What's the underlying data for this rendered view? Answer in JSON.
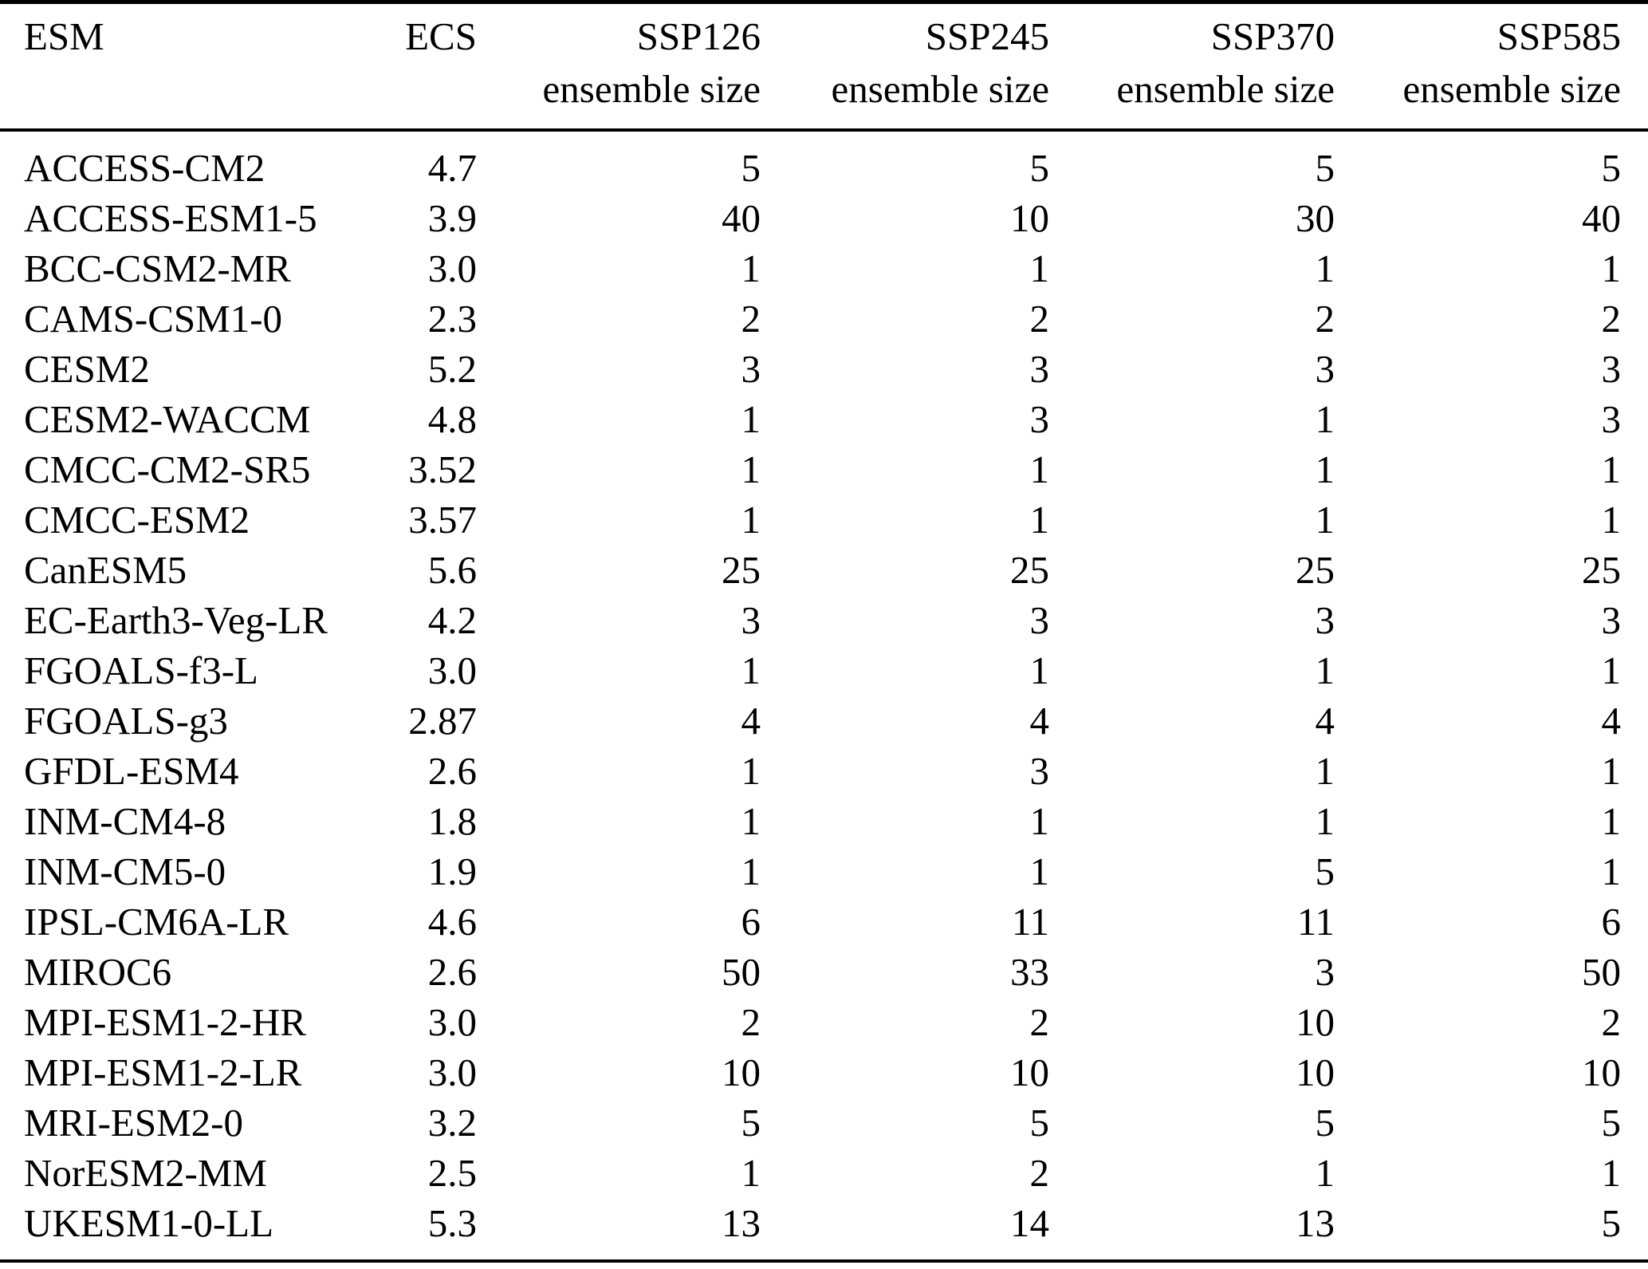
{
  "table": {
    "background": "#ffffff",
    "text_color": "#000000",
    "rule_color": "#000000",
    "columns": [
      {
        "key": "esm",
        "label": "ESM",
        "sublabel": ""
      },
      {
        "key": "ecs",
        "label": "ECS",
        "sublabel": ""
      },
      {
        "key": "ssp126",
        "label": "SSP126",
        "sublabel": "ensemble size"
      },
      {
        "key": "ssp245",
        "label": "SSP245",
        "sublabel": "ensemble size"
      },
      {
        "key": "ssp370",
        "label": "SSP370",
        "sublabel": "ensemble size"
      },
      {
        "key": "ssp585",
        "label": "SSP585",
        "sublabel": "ensemble size"
      }
    ],
    "rows": [
      [
        "ACCESS-CM2",
        "4.7",
        "5",
        "5",
        "5",
        "5"
      ],
      [
        "ACCESS-ESM1-5",
        "3.9",
        "40",
        "10",
        "30",
        "40"
      ],
      [
        "BCC-CSM2-MR",
        "3.0",
        "1",
        "1",
        "1",
        "1"
      ],
      [
        "CAMS-CSM1-0",
        "2.3",
        "2",
        "2",
        "2",
        "2"
      ],
      [
        "CESM2",
        "5.2",
        "3",
        "3",
        "3",
        "3"
      ],
      [
        "CESM2-WACCM",
        "4.8",
        "1",
        "3",
        "1",
        "3"
      ],
      [
        "CMCC-CM2-SR5",
        "3.52",
        "1",
        "1",
        "1",
        "1"
      ],
      [
        "CMCC-ESM2",
        "3.57",
        "1",
        "1",
        "1",
        "1"
      ],
      [
        "CanESM5",
        "5.6",
        "25",
        "25",
        "25",
        "25"
      ],
      [
        "EC-Earth3-Veg-LR",
        "4.2",
        "3",
        "3",
        "3",
        "3"
      ],
      [
        "FGOALS-f3-L",
        "3.0",
        "1",
        "1",
        "1",
        "1"
      ],
      [
        "FGOALS-g3",
        "2.87",
        "4",
        "4",
        "4",
        "4"
      ],
      [
        "GFDL-ESM4",
        "2.6",
        "1",
        "3",
        "1",
        "1"
      ],
      [
        "INM-CM4-8",
        "1.8",
        "1",
        "1",
        "1",
        "1"
      ],
      [
        "INM-CM5-0",
        "1.9",
        "1",
        "1",
        "5",
        "1"
      ],
      [
        "IPSL-CM6A-LR",
        "4.6",
        "6",
        "11",
        "11",
        "6"
      ],
      [
        "MIROC6",
        "2.6",
        "50",
        "33",
        "3",
        "50"
      ],
      [
        "MPI-ESM1-2-HR",
        "3.0",
        "2",
        "2",
        "10",
        "2"
      ],
      [
        "MPI-ESM1-2-LR",
        "3.0",
        "10",
        "10",
        "10",
        "10"
      ],
      [
        "MRI-ESM2-0",
        "3.2",
        "5",
        "5",
        "5",
        "5"
      ],
      [
        "NorESM2-MM",
        "2.5",
        "1",
        "2",
        "1",
        "1"
      ],
      [
        "UKESM1-0-LL",
        "5.3",
        "13",
        "14",
        "13",
        "5"
      ]
    ]
  }
}
